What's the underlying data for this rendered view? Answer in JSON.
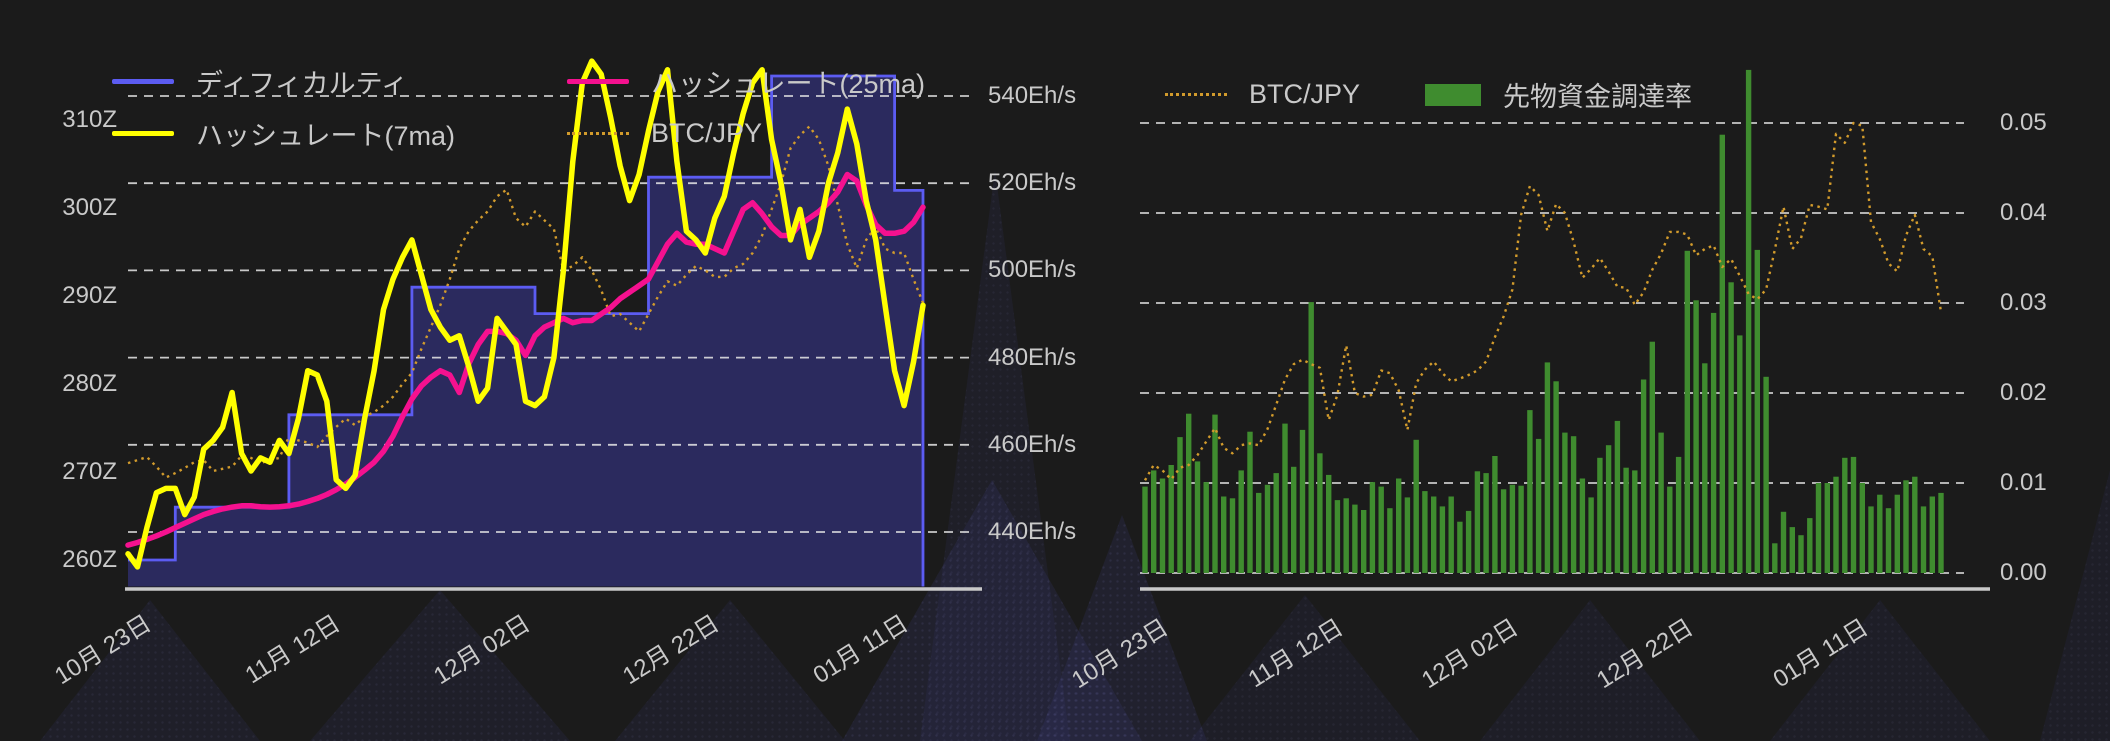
{
  "page": {
    "background_color": "#1b1b1b"
  },
  "chart_data": [
    {
      "id": "hashrate-difficulty-chart",
      "type": "line",
      "title": "",
      "grid": true,
      "legend_position": "top-left",
      "x_axis": {
        "tick_labels": [
          "10月 23日",
          "11月 12日",
          "12月 02日",
          "12月 22日",
          "01月 11日"
        ],
        "tick_indices": [
          0,
          20,
          40,
          60,
          80
        ],
        "n_points": 85
      },
      "y_axis_left": {
        "unit": "Z",
        "tick_labels": [
          "310Z",
          "300Z",
          "290Z",
          "280Z",
          "270Z",
          "260Z"
        ],
        "min": 260,
        "max": 310
      },
      "y_axis_right": {
        "unit": "Eh/s",
        "tick_labels": [
          "540Eh/s",
          "520Eh/s",
          "500Eh/s",
          "480Eh/s",
          "460Eh/s",
          "440Eh/s"
        ],
        "min": 440,
        "max": 540
      },
      "series": [
        {
          "name": "ディフィカルティ",
          "type": "step_area",
          "axis": "left",
          "color": "#5c5cf2",
          "fill": "#2b2a5e",
          "values": [
            260,
            260,
            260,
            260,
            260,
            266,
            266,
            266,
            266,
            266,
            266,
            266,
            266,
            266,
            266,
            266,
            266,
            276.5,
            276.5,
            276.5,
            276.5,
            276.5,
            276.5,
            276.5,
            276.5,
            276.5,
            276.5,
            276.5,
            276.5,
            276.5,
            291,
            291,
            291,
            291,
            291,
            291,
            291,
            291,
            291,
            291,
            291,
            291,
            291,
            288,
            288,
            288,
            288,
            288,
            288,
            288,
            288,
            288,
            288,
            288,
            288,
            303.5,
            303.5,
            303.5,
            303.5,
            303.5,
            303.5,
            303.5,
            303.5,
            303.5,
            303.5,
            303.5,
            303.5,
            303.5,
            315,
            315,
            315,
            315,
            315,
            315,
            315,
            315,
            315,
            315,
            315,
            315,
            315,
            302,
            302,
            302,
            302
          ]
        },
        {
          "name": "ハッシュレート(7ma)",
          "type": "line",
          "axis": "right",
          "color": "#ffff00",
          "values": [
            435,
            432,
            441,
            449,
            450,
            450,
            444,
            448,
            459,
            461,
            464,
            472,
            458,
            454,
            457,
            456,
            461,
            458,
            466,
            477,
            476,
            470,
            452,
            450,
            453,
            466,
            477,
            491,
            498,
            503,
            507,
            499,
            491,
            487,
            484,
            485,
            478,
            470,
            473,
            489,
            486,
            483,
            470,
            469,
            471,
            480,
            500,
            525,
            543,
            548,
            545,
            535,
            524,
            516,
            522,
            532,
            541,
            546,
            525,
            509,
            507,
            504,
            512,
            517,
            527,
            536,
            543,
            546,
            530,
            520,
            507,
            514,
            503,
            509,
            520,
            527,
            537,
            529,
            516,
            507,
            492,
            477,
            469,
            479,
            492
          ]
        },
        {
          "name": "ハッシュレート(25ma)",
          "type": "line",
          "axis": "right",
          "color": "#f5118f",
          "values": [
            437,
            437.6,
            438.3,
            439.1,
            440,
            441,
            442,
            443,
            444,
            444.7,
            445.3,
            445.7,
            446,
            446,
            445.8,
            445.7,
            445.8,
            446,
            446.4,
            447,
            447.7,
            448.6,
            449.7,
            451,
            452.5,
            454.2,
            456,
            458.5,
            462,
            466.5,
            470.5,
            473.5,
            475.5,
            477,
            476,
            472,
            478.5,
            483,
            486,
            486,
            485.5,
            484,
            480.5,
            485,
            487,
            488,
            489,
            488,
            488.5,
            488.5,
            490,
            491.5,
            493.5,
            495,
            496.5,
            498,
            502,
            506,
            508.5,
            506.5,
            506,
            506,
            505,
            504,
            509,
            514,
            515.5,
            513,
            510,
            508,
            508,
            510.5,
            512,
            513.5,
            515.5,
            518,
            522,
            520.5,
            515,
            510.5,
            508.5,
            508.5,
            509,
            511,
            514.5
          ]
        },
        {
          "name": "BTC/JPY",
          "type": "dotted_line",
          "axis": "right",
          "color": "#d29b2c",
          "note": "price overlay without visible axis; values in right-axis coordinate space",
          "values": [
            455.8,
            456.5,
            457.2,
            455,
            452.5,
            453.5,
            454.7,
            456,
            456.5,
            454,
            454.5,
            455,
            457.5,
            457,
            455.8,
            456.5,
            457,
            461.8,
            461,
            460.5,
            459.5,
            462,
            464.1,
            466,
            464.5,
            466.5,
            467.5,
            469,
            471,
            474,
            476.5,
            482,
            487,
            492,
            498,
            505,
            509,
            511.5,
            513.5,
            517,
            518.5,
            512,
            510,
            513.5,
            511.5,
            509.5,
            500,
            501,
            503,
            500,
            495.5,
            489.5,
            490,
            488,
            486,
            490,
            494,
            497.5,
            496.5,
            499,
            501,
            500,
            498.5,
            498.5,
            500.5,
            501.5,
            504,
            508,
            514,
            520,
            528,
            531,
            533,
            530,
            524,
            515,
            506,
            500.5,
            507,
            510,
            505,
            504,
            504,
            498,
            492.5
          ]
        }
      ]
    },
    {
      "id": "funding-rate-chart",
      "type": "bar",
      "title": "",
      "grid": true,
      "legend_position": "top-left",
      "x_axis": {
        "tick_labels": [
          "10月 23日",
          "11月 12日",
          "12月 02日",
          "12月 22日",
          "01月 11日"
        ],
        "tick_indices": [
          0,
          20,
          40,
          60,
          80
        ],
        "n_points": 92
      },
      "y_axis_right": {
        "unit": "",
        "tick_labels": [
          "0.05",
          "0.04",
          "0.03",
          "0.02",
          "0.01",
          "0.00"
        ],
        "min": 0,
        "max": 0.05
      },
      "series": [
        {
          "name": "BTC/JPY",
          "type": "dotted_line",
          "color": "#d29b2c",
          "note": "price overlay scaled to 0-0.05 axis space",
          "values": [
            0.0103,
            0.012,
            0.0114,
            0.0104,
            0.0117,
            0.012,
            0.0131,
            0.0146,
            0.0161,
            0.0139,
            0.0133,
            0.0142,
            0.0144,
            0.0142,
            0.016,
            0.0187,
            0.0215,
            0.0232,
            0.0237,
            0.0232,
            0.0228,
            0.017,
            0.0198,
            0.0253,
            0.02,
            0.0196,
            0.0198,
            0.0225,
            0.0222,
            0.0203,
            0.0159,
            0.0211,
            0.0226,
            0.0235,
            0.0222,
            0.0213,
            0.0216,
            0.022,
            0.0225,
            0.0235,
            0.0262,
            0.0285,
            0.0315,
            0.0398,
            0.043,
            0.042,
            0.038,
            0.041,
            0.04,
            0.0368,
            0.0328,
            0.0338,
            0.035,
            0.0335,
            0.0318,
            0.0317,
            0.0298,
            0.0312,
            0.0337,
            0.0355,
            0.0379,
            0.0379,
            0.0376,
            0.0353,
            0.036,
            0.0364,
            0.034,
            0.0349,
            0.033,
            0.031,
            0.0304,
            0.0315,
            0.0359,
            0.0407,
            0.036,
            0.0372,
            0.0409,
            0.0407,
            0.0404,
            0.0488,
            0.0478,
            0.05,
            0.0497,
            0.039,
            0.0371,
            0.0344,
            0.0335,
            0.0375,
            0.0398,
            0.036,
            0.0352,
            0.029
          ]
        },
        {
          "name": "先物資金調達率",
          "type": "bar",
          "color": "#3f8c2f",
          "values": [
            0.0096,
            0.0114,
            0.0105,
            0.012,
            0.0151,
            0.0177,
            0.0124,
            0.0101,
            0.0176,
            0.0085,
            0.0083,
            0.0114,
            0.0157,
            0.0089,
            0.0098,
            0.0111,
            0.0166,
            0.0118,
            0.0159,
            0.0301,
            0.0133,
            0.0109,
            0.0081,
            0.0083,
            0.0076,
            0.007,
            0.0101,
            0.0096,
            0.0072,
            0.0105,
            0.0084,
            0.0148,
            0.0091,
            0.0085,
            0.0074,
            0.0085,
            0.0057,
            0.0069,
            0.0113,
            0.0111,
            0.013,
            0.0093,
            0.0098,
            0.0097,
            0.0181,
            0.0149,
            0.0234,
            0.0213,
            0.0156,
            0.0152,
            0.0105,
            0.0084,
            0.0128,
            0.0142,
            0.0169,
            0.0117,
            0.0114,
            0.0215,
            0.0257,
            0.0156,
            0.0096,
            0.0129,
            0.0358,
            0.0303,
            0.0233,
            0.0289,
            0.0487,
            0.0323,
            0.0264,
            0.0559,
            0.0359,
            0.0218,
            0.0033,
            0.0068,
            0.0051,
            0.0042,
            0.0061,
            0.01,
            0.01,
            0.0107,
            0.0128,
            0.0129,
            0.01,
            0.0074,
            0.0087,
            0.0072,
            0.0087,
            0.0103,
            0.0107,
            0.0074,
            0.0085,
            0.0089
          ]
        }
      ]
    }
  ]
}
